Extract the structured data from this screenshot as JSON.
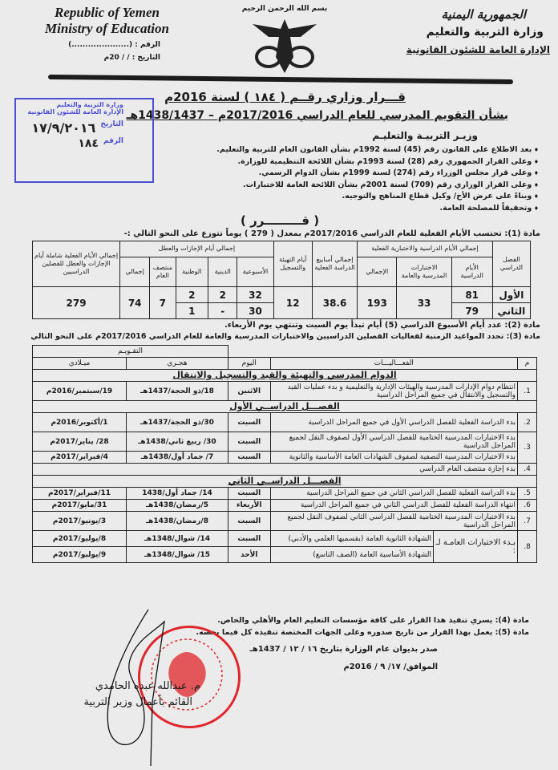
{
  "header": {
    "en_line1": "Republic of Yemen",
    "en_line2": "Ministry of Education",
    "ref_label": "الرقم : (.....................)",
    "date_label": "التاريخ :   /   / 20م",
    "ar_line1": "الجمهورية اليمنية",
    "ar_line2": "وزارة التربية والتعليم",
    "ar_line3": "الإدارة العامة للشئون القانونية",
    "basmala": "بسم الله الرحمن الرحيم"
  },
  "title": "قـــرار وزاري رقــم ( ١٨٤ ) لسنة 2016م",
  "subtitle": "بشأن التقويم المدرسي للعام الدراسي 2017/2016م – 1438/1437هـ",
  "stamp_blue": {
    "line1": "وزارة التربية والتعليم",
    "line2": "الإدارة العامة للشئون القانونية",
    "date_label": "التاريخ",
    "date_value": "١٧/٩/٢٠١٦",
    "ref_label": "الرقم",
    "ref_value": "١٨٤"
  },
  "minister_heading": "وزيـر التربيـة والتعليـم",
  "preamble": [
    "بعد الاطلاع على القانون رقم (45) لسنة 1992م بشأن القانون العام للتربية والتعليم.",
    "وعلى القرار الجمهوري رقم (28) لسنة 1993م بشأن اللائحة التنظيمية للوزارة.",
    "وعلى قرار مجلس الوزراء رقم (274) لسنة 1999م بشأن الدوام الرسمي.",
    "وعلى القرار الوزاري رقم (709) لسنة 2001م بشأن اللائحة العامة للاختبارات.",
    "وبناءً على عرض الأخ/ وكيل قطاع المناهج والتوجيه.",
    "وتحقيقاً للمصلحة العامة."
  ],
  "decision_heading": "( قـــــــــرر )",
  "article1": "مادة (1): تحتسب الأيام الفعلية للعام الدراسي 2017/2016م بمعدل ( 279 ) يوماً تتوزع على النحو التالي :-",
  "table1": {
    "h_semester": "الفصل الدراسي",
    "h_group_study": "إجمالي الأيام الدراسية والاختبارية الفعلية",
    "h_study_days": "الأيام الدراسية",
    "h_exams": "الاختبارات المدرسية والعامة",
    "h_total": "الإجمالي",
    "h_weeks": "إجمالي أسابيع الدراسة الفعلية",
    "h_prep": "أيام التهيئة والتسجيل",
    "h_group_holidays": "إجمالي أيام الإجازات والعطل",
    "h_weekly": "الأسبوعية",
    "h_religious": "الدينية",
    "h_national": "الوطنية",
    "h_midyear": "منتصف العام",
    "h_hol_total": "إجمالي",
    "h_grand": "إجمالي الأيام الفعلية شاملة أيام الإجازات والعطل للفصلين الدراسيين",
    "rows": [
      {
        "semester": "الأول",
        "study_days": "81",
        "weekly": "32",
        "religious": "2",
        "national": "2"
      },
      {
        "semester": "الثاني",
        "study_days": "79",
        "weekly": "30",
        "religious": "-",
        "national": "1"
      }
    ],
    "exams": "33",
    "total": "193",
    "weeks": "38.6",
    "prep": "12",
    "midyear": "7",
    "hol_total": "74",
    "grand": "279"
  },
  "article2": "مادة (2): عدد أيام الأسبوع الدراسي (5) أيام تبدأ يوم السبت وتنتهي يوم الأربعاء.",
  "article3": "مادة (3): تحدد المواعيد الزمنية لفعاليات الفصلين الدراسيين والاختبارات المدرسية والعامة للعام الدراسي 2017/2016م على النحو التالي",
  "table2": {
    "h_calendar": "التقـويـم",
    "h_num": "م",
    "h_activities": "الفعـــاليـــات",
    "h_day": "اليوم",
    "h_hijri": "هجـري",
    "h_gregorian": "ميـلادي",
    "sec1": "الدوام المدرسي والتهيئة والقيد والتسجيل والانتقال",
    "sec2": "الفصـــل الدراســي الأول",
    "sec3": "الفصـــل الدراســي الثاني",
    "r1": {
      "num": "1.",
      "act": "انتظام دوام الإدارات المدرسية والهيئات الإدارية والتعليمية و بدء عمليات القيد والتسجيل والانتقال في جميع المراحل الدراسية",
      "day": "الاثنين",
      "hijri": "18/ذو الحجة/1437هـ",
      "greg": "19/سبتمبر/2016م"
    },
    "r2": {
      "num": "2.",
      "act": "بدء الدراسة الفعلية للفصل الدراسي الأول في جميع المراحل الدراسية",
      "day": "السبت",
      "hijri": "30/ذو الحجة/1437هـ",
      "greg": "1/أكتوبر/2016م"
    },
    "r3a": {
      "num": "3.",
      "act": "بدء الاختبارات المدرسية الختامية للفصل الدراسي الأول لصفوف النقل لجميع المراحل الدراسية",
      "day": "السبت",
      "hijri": "30/ ربيع ثاني/1438هـ",
      "greg": "28/ يناير/2017م"
    },
    "r3b": {
      "act": "بدء الاختبارات المدرسية التصفية لصفوف الشهادات العامة الأساسية والثانوية",
      "day": "السبت",
      "hijri": "7/ جماد أول/1438هـ",
      "greg": "4/فبراير/2017م"
    },
    "r4": {
      "num": "4.",
      "act": "بدء إجازة منتصف العام الدراسي"
    },
    "r5": {
      "num": "5.",
      "act": "بدء الدراسة الفعلية للفصل الدراسي الثاني في جميع المراحل الدراسية",
      "day": "السبت",
      "hijri": "14/ جماد أول/1438",
      "greg": "11/فبراير/2017م"
    },
    "r6": {
      "num": "6.",
      "act": "انتهاء الدراسة الفعلية للفصل الدراسي الثاني في جميع المراحل الدراسية",
      "day": "الأربعاء",
      "hijri": "5/رمضان/1438هـ",
      "greg": "31/مايو/2017م"
    },
    "r7": {
      "num": "7.",
      "act": "بدء الاختبارات المدرسية الختامية للفصل الدراسي الثاني لصفوف النقل لجميع المراحل الدراسية",
      "day": "السبت",
      "hijri": "8/رمضان/1438هـ",
      "greg": "3/يونيو/2017م"
    },
    "r8": {
      "num": "8.",
      "act": "بـدء الاختبارات العامـة لـ :",
      "sub1": "الشهادة الثانوية العامة (بقسميها العلمي والأدبي)",
      "day1": "السبت",
      "hijri1": "14/ شوال/1348هـ",
      "greg1": "8/يوليو/2017م",
      "sub2": "الشهادة الأساسية العامة (الصف التاسع)",
      "day2": "الأحد",
      "hijri2": "15/ شوال/1348هـ",
      "greg2": "9/يوليو/2017م"
    }
  },
  "article4": "مادة (4): يسري تنفيذ هذا القرار على كافة مؤسسات التعليم العام والأهلي والخاص.",
  "article5": "مادة (5): يعمل بهذا القرار من تاريخ صدوره وعلى الجهات المختصة تنفيذه كل فيما يخصه.",
  "issued_hijri": "صدر بديوان عام الوزارة بتاريخ ١٦ / ١٢ / 1437هـ",
  "issued_greg": "الموافق/ ١٧/ ٩ / 2016م",
  "signatory_name": "م. عبدالله عبده الحامدي",
  "signatory_title": "القائم بأعمال وزير التربية",
  "stamp_red": "الجمهورية اليمنية - وزارة التربية والتعليم - REPUBLIC OF YEMEN MINISTRY OF EDUCATION",
  "colors": {
    "paper": "#ecebeb",
    "ink": "#1a1a1a",
    "stamp_blue": "#4b4fd6",
    "stamp_red": "#e0262b"
  }
}
